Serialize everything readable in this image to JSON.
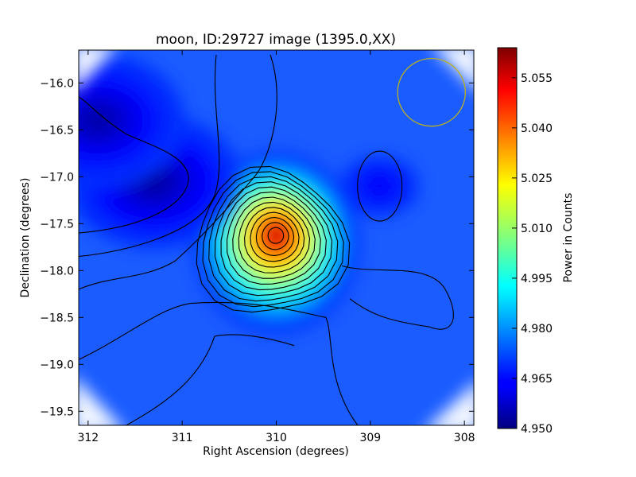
{
  "chart_data": {
    "type": "heatmap",
    "title": "moon, ID:29727 image (1395.0,XX)",
    "xlabel": "Right Ascension (degrees)",
    "ylabel": "Declination (degrees)",
    "xlim": [
      312.1,
      307.9
    ],
    "ylim": [
      -19.65,
      -15.65
    ],
    "x_ticks": [
      312,
      311,
      310,
      309,
      308
    ],
    "y_ticks": [
      -16.0,
      -16.5,
      -17.0,
      -17.5,
      -18.0,
      -18.5,
      -19.0,
      -19.5
    ],
    "colormap": "jet",
    "grid": false,
    "colorbar": {
      "label": "Power in Counts",
      "range": [
        4.95,
        5.064
      ],
      "ticks": [
        "5.055",
        "5.040",
        "5.025",
        "5.010",
        "4.995",
        "4.980",
        "4.965",
        "4.950"
      ]
    },
    "background_level": 4.97,
    "peaks": [
      {
        "x": 310.0,
        "y": -17.62,
        "value": 5.062,
        "kind": "maximum"
      },
      {
        "x": 311.3,
        "y": -17.05,
        "value": 4.952,
        "kind": "minimum"
      },
      {
        "x": 311.9,
        "y": -16.4,
        "value": 4.953,
        "kind": "minimum"
      },
      {
        "x": 308.9,
        "y": -17.1,
        "value": 4.962,
        "kind": "minimum"
      }
    ],
    "beam_circle": {
      "x": 308.35,
      "y": -16.1,
      "radius_deg": 0.36,
      "color": "#b8b020"
    }
  }
}
